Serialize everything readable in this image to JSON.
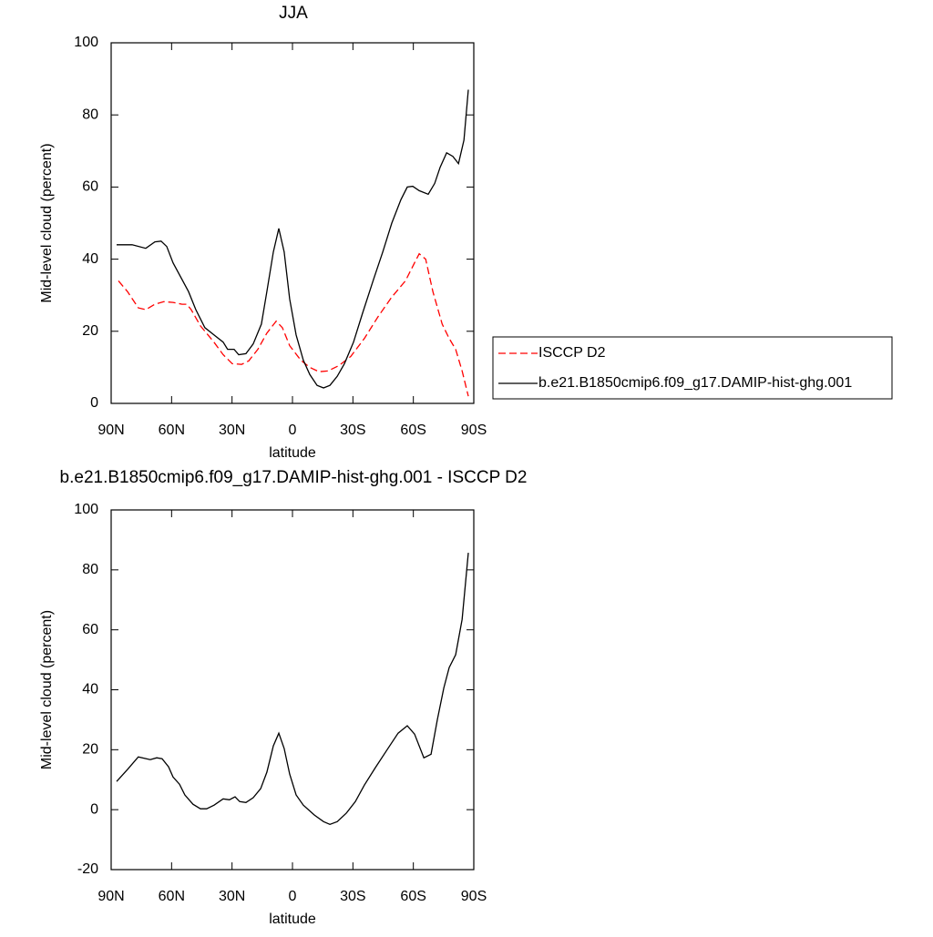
{
  "chart_data": [
    {
      "type": "line",
      "title": "JJA",
      "xlabel": "latitude",
      "ylabel": "Mid-level cloud (percent)",
      "xlim": [
        90,
        -90
      ],
      "xticks": [
        {
          "value": 90,
          "label": "90N"
        },
        {
          "value": 60,
          "label": "60N"
        },
        {
          "value": 30,
          "label": "30N"
        },
        0,
        {
          "value": -30,
          "label": "30S"
        },
        {
          "value": -60,
          "label": "60S"
        },
        {
          "value": -90,
          "label": "90S"
        }
      ],
      "ylim": [
        0,
        100
      ],
      "yticks": [
        0,
        20,
        40,
        60,
        80,
        100
      ],
      "legend": "right",
      "series": [
        {
          "name": "ISCCP D2",
          "color": "#ff0000",
          "line_style": "dashed",
          "x": [
            86.4,
            81.9,
            76.5,
            72.8,
            68.3,
            63.8,
            59.3,
            54.8,
            52.5,
            50.3,
            45.7,
            39,
            34.4,
            29.9,
            25.3,
            21.7,
            17.2,
            12.7,
            8.1,
            5,
            1.4,
            -4.1,
            -8.6,
            -13.1,
            -17.6,
            -23.1,
            -28.9,
            -35.7,
            -42.4,
            -49.3,
            -56.1,
            -60.6,
            -62.9,
            -66.1,
            -69.7,
            -74.3,
            -77.8,
            -81,
            -84.2,
            -87.3
          ],
          "values": [
            34,
            31,
            26.5,
            26,
            27.5,
            28.2,
            28,
            27.5,
            27.5,
            26,
            21.5,
            17,
            13.5,
            11,
            10.8,
            11.8,
            15,
            19.5,
            22.8,
            21,
            16,
            12,
            10,
            8.8,
            9,
            10.5,
            13,
            18,
            24,
            29.5,
            34,
            39,
            41.5,
            40,
            31,
            22,
            18,
            15,
            9,
            2
          ]
        },
        {
          "name": "b.e21.B1850cmip6.f09_g17.DAMIP-hist-ghg.001",
          "color": "#000000",
          "line_style": "solid",
          "x": [
            87.3,
            79.6,
            72.8,
            68.3,
            65.2,
            62.4,
            59.3,
            51.6,
            48,
            43.5,
            39,
            34.4,
            32.2,
            29,
            26.7,
            23.1,
            19.5,
            15.4,
            12.7,
            9.5,
            6.8,
            4.1,
            1.4,
            -1.8,
            -5.4,
            -8.6,
            -12.2,
            -15.4,
            -18.6,
            -22.2,
            -25.8,
            -30.3,
            -34.8,
            -40.3,
            -44.8,
            -49.3,
            -53.8,
            -57,
            -59.7,
            -62.9,
            -67.4,
            -70.6,
            -73.3,
            -76.5,
            -79.6,
            -82.4,
            -85.1,
            -87.3
          ],
          "values": [
            44,
            44,
            43,
            44.8,
            45,
            43.5,
            39,
            31,
            26,
            21,
            19,
            17,
            15,
            15,
            13.5,
            13.8,
            16.5,
            22,
            31,
            42,
            48.5,
            42,
            29,
            19,
            12,
            8,
            5,
            4.3,
            5,
            7.5,
            11,
            17,
            25,
            34.5,
            42,
            50,
            56.5,
            60,
            60.2,
            59,
            58,
            61,
            65.5,
            69.5,
            68.5,
            66.5,
            73,
            87
          ]
        }
      ]
    },
    {
      "type": "line",
      "title": "b.e21.B1850cmip6.f09_g17.DAMIP-hist-ghg.001 - ISCCP D2",
      "xlabel": "latitude",
      "ylabel": "Mid-level cloud (percent)",
      "xlim": [
        90,
        -90
      ],
      "xticks": [
        {
          "value": 90,
          "label": "90N"
        },
        {
          "value": 60,
          "label": "60N"
        },
        {
          "value": 30,
          "label": "30N"
        },
        0,
        {
          "value": -30,
          "label": "30S"
        },
        {
          "value": -60,
          "label": "60S"
        },
        {
          "value": -90,
          "label": "90S"
        }
      ],
      "ylim": [
        -20,
        100
      ],
      "yticks": [
        -20,
        0,
        20,
        40,
        60,
        80,
        100
      ],
      "series": [
        {
          "color": "#000000",
          "line_style": "solid",
          "x": [
            87.3,
            81.9,
            76.5,
            70.6,
            67.4,
            64.7,
            61.5,
            59.3,
            56.1,
            53.4,
            49.4,
            45.7,
            42.6,
            38.9,
            34.4,
            31.3,
            28.5,
            26.2,
            23.1,
            19.5,
            15.8,
            12.7,
            9.5,
            6.8,
            4.1,
            1.4,
            -1.8,
            -5.4,
            -10.9,
            -15.4,
            -18.6,
            -22.2,
            -26.7,
            -31.2,
            -35.7,
            -41.1,
            -47,
            -52.4,
            -57,
            -60.6,
            -65.2,
            -68.8,
            -71.9,
            -75.1,
            -77.8,
            -81,
            -84.2,
            -87.3
          ],
          "values": [
            9.4,
            13.4,
            17.6,
            16.7,
            17.3,
            17,
            14.3,
            10.9,
            8.5,
            4.9,
            1.8,
            0.3,
            0.3,
            1.5,
            3.6,
            3.3,
            4.3,
            2.7,
            2.4,
            4,
            7,
            12.5,
            21.3,
            25.5,
            20.4,
            11.9,
            4.9,
            1.5,
            -1.8,
            -4,
            -4.9,
            -4,
            -1.2,
            2.7,
            8.2,
            14,
            20,
            25.5,
            28,
            25.2,
            17.3,
            18.5,
            30,
            40.6,
            47.4,
            51.7,
            63.5,
            85.7
          ]
        }
      ]
    }
  ]
}
